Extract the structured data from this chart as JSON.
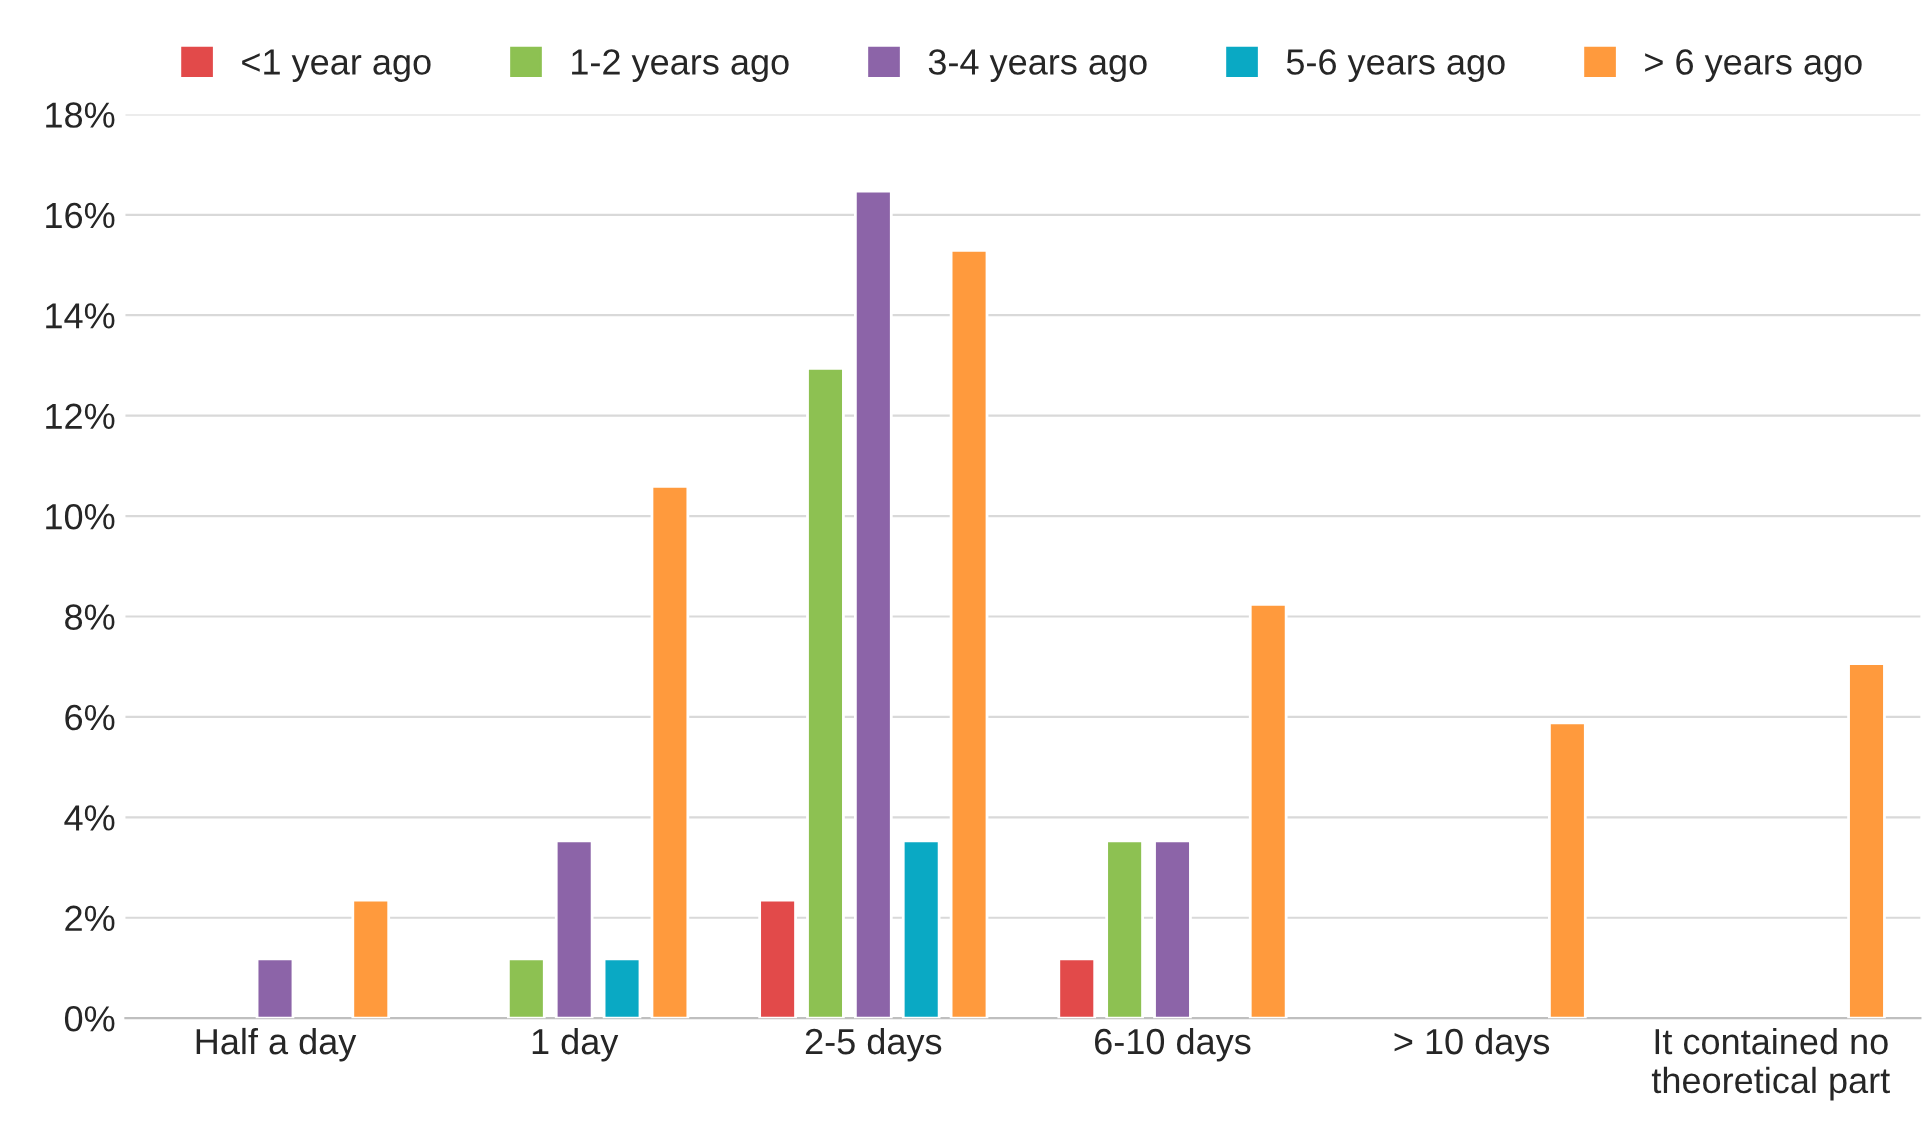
{
  "chart_data": {
    "type": "bar",
    "categories": [
      "Half a day",
      "1 day",
      "2-5 days",
      "6-10 days",
      "> 10 days",
      "It contained no\ntheoretical part"
    ],
    "series": [
      {
        "name": "<1 year ago",
        "color": "#e24a4a",
        "values": [
          null,
          null,
          2.35,
          1.18,
          null,
          null
        ]
      },
      {
        "name": "1-2 years ago",
        "color": "#8dc152",
        "values": [
          null,
          1.18,
          12.94,
          3.53,
          null,
          null
        ]
      },
      {
        "name": "3-4 years ago",
        "color": "#8c64a8",
        "values": [
          1.18,
          3.53,
          16.47,
          3.53,
          null,
          null
        ]
      },
      {
        "name": "5-6 years ago",
        "color": "#0aa9c4",
        "values": [
          null,
          1.18,
          3.53,
          null,
          null,
          null
        ]
      },
      {
        "name": "> 6 years ago",
        "color": "#ff9a3d",
        "values": [
          2.35,
          10.59,
          15.29,
          8.24,
          5.88,
          7.06
        ]
      }
    ],
    "ylim": [
      0,
      18
    ],
    "yticks": [
      {
        "value": 0,
        "label": "0%"
      },
      {
        "value": 2,
        "label": "2%"
      },
      {
        "value": 4,
        "label": "4%"
      },
      {
        "value": 6,
        "label": "6%"
      },
      {
        "value": 8,
        "label": "8%"
      },
      {
        "value": 10,
        "label": "10%"
      },
      {
        "value": 12,
        "label": "12%"
      },
      {
        "value": 14,
        "label": "14%"
      },
      {
        "value": 16,
        "label": "16%"
      },
      {
        "value": 18,
        "label": "18%"
      }
    ],
    "grid": "y",
    "legend": "top"
  }
}
